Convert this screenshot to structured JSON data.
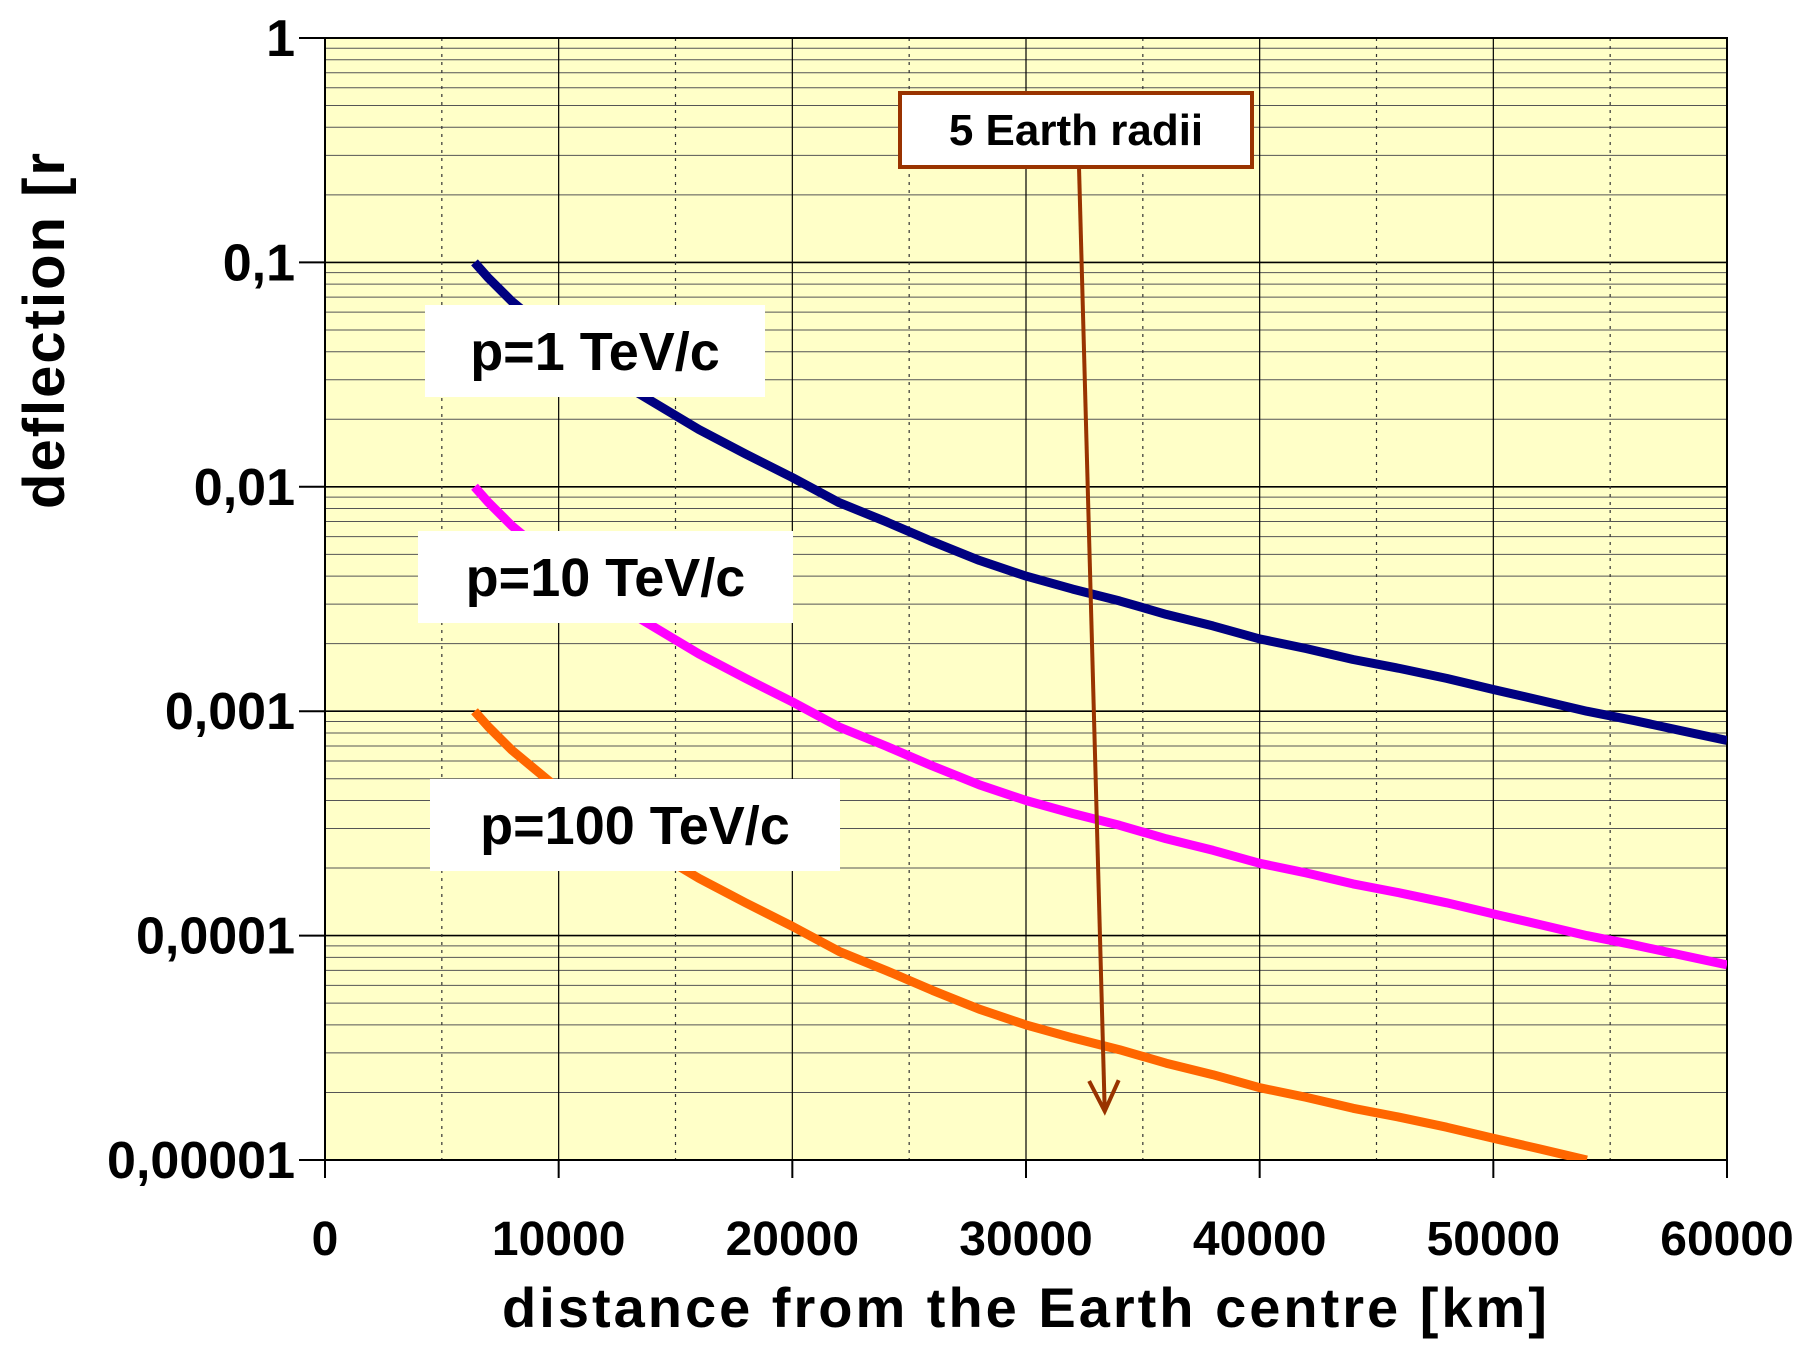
{
  "chart_data": {
    "type": "line",
    "xlabel": "distance from the Earth centre [km]",
    "ylabel": "deflection [r",
    "x_ticks": [
      "0",
      "10000",
      "20000",
      "30000",
      "40000",
      "50000",
      "60000"
    ],
    "y_ticks": [
      "1",
      "0,1",
      "0,01",
      "0,001",
      "0,0001",
      "0,00001"
    ],
    "xlim": [
      0,
      60000
    ],
    "ylim": [
      1e-05,
      1
    ],
    "y_scale": "log",
    "grid": true,
    "plot_background": "#ffffc8",
    "series": [
      {
        "name": "p=1 TeV/c",
        "color": "#000080",
        "x": [
          6400,
          7000,
          8000,
          10000,
          12000,
          14000,
          16000,
          18000,
          20000,
          22000,
          24000,
          26000,
          28000,
          30000,
          32000,
          34000,
          36000,
          38000,
          40000,
          42000,
          44000,
          46000,
          48000,
          50000,
          52000,
          54000,
          56000,
          58000,
          60000
        ],
        "y": [
          0.1,
          0.085,
          0.067,
          0.045,
          0.032,
          0.024,
          0.018,
          0.014,
          0.011,
          0.0085,
          0.007,
          0.0057,
          0.0047,
          0.004,
          0.0035,
          0.0031,
          0.0027,
          0.0024,
          0.0021,
          0.0019,
          0.0017,
          0.00155,
          0.0014,
          0.00125,
          0.00112,
          0.001,
          0.00091,
          0.00082,
          0.00074
        ]
      },
      {
        "name": "p=10 TeV/c",
        "color": "#ff00ff",
        "x": [
          6400,
          7000,
          8000,
          10000,
          12000,
          14000,
          16000,
          18000,
          20000,
          22000,
          24000,
          26000,
          28000,
          30000,
          32000,
          34000,
          36000,
          38000,
          40000,
          42000,
          44000,
          46000,
          48000,
          50000,
          52000,
          54000,
          56000,
          58000,
          60000
        ],
        "y": [
          0.01,
          0.0085,
          0.0067,
          0.0045,
          0.0032,
          0.0024,
          0.0018,
          0.0014,
          0.0011,
          0.00085,
          0.0007,
          0.00057,
          0.00047,
          0.0004,
          0.00035,
          0.00031,
          0.00027,
          0.00024,
          0.00021,
          0.00019,
          0.00017,
          0.000155,
          0.00014,
          0.000125,
          0.000112,
          0.0001,
          9.1e-05,
          8.2e-05,
          7.4e-05
        ]
      },
      {
        "name": "p=100 TeV/c",
        "color": "#ff6600",
        "x": [
          6400,
          7000,
          8000,
          10000,
          12000,
          14000,
          16000,
          18000,
          20000,
          22000,
          24000,
          26000,
          28000,
          30000,
          32000,
          34000,
          36000,
          38000,
          40000,
          42000,
          44000,
          46000,
          48000,
          50000,
          52000,
          54000
        ],
        "y": [
          0.001,
          0.00085,
          0.00067,
          0.00045,
          0.00032,
          0.00024,
          0.00018,
          0.00014,
          0.00011,
          8.5e-05,
          7e-05,
          5.7e-05,
          4.7e-05,
          4e-05,
          3.5e-05,
          3.1e-05,
          2.7e-05,
          2.4e-05,
          2.1e-05,
          1.9e-05,
          1.7e-05,
          1.55e-05,
          1.4e-05,
          1.25e-05,
          1.12e-05,
          1e-05
        ]
      }
    ],
    "annotations": [
      {
        "text": "5 Earth radii",
        "arrow_x": 32000,
        "arrow_from_y": 0.4,
        "arrow_to_y": 2.7e-05,
        "color": "#993300"
      }
    ]
  }
}
